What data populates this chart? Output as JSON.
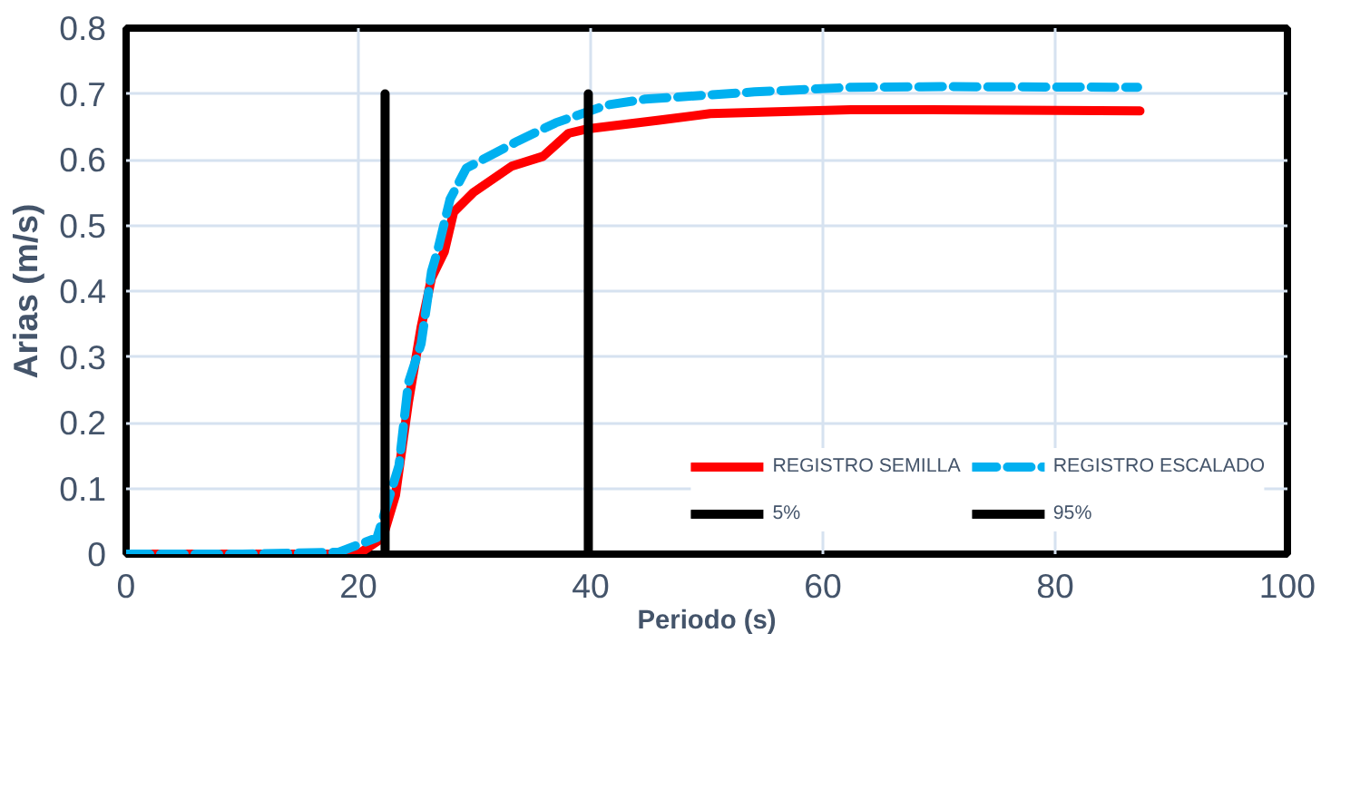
{
  "chart_data": {
    "type": "line",
    "xlabel": "Periodo (s)",
    "ylabel": "Arias (m/s)",
    "xlim": [
      0,
      100
    ],
    "ylim": [
      0,
      0.8
    ],
    "xticks": [
      0,
      20,
      40,
      60,
      80,
      100
    ],
    "yticks": [
      0,
      0.1,
      0.2,
      0.3,
      0.4,
      0.5,
      0.6,
      0.7,
      0.8
    ],
    "grid": true,
    "legend": "bottom right",
    "series": [
      {
        "name": "REGISTRO SEMILLA",
        "color": "#ff0000",
        "line_style": "solid",
        "x": [
          0,
          10,
          20,
          22.1,
          23.2,
          24.3,
          25.4,
          26.3,
          27.4,
          28.2,
          29.9,
          33.2,
          35.9,
          38.1,
          39.8,
          45.9,
          50.3,
          62.4,
          69.5,
          87.3
        ],
        "values": [
          0,
          0,
          0,
          0.025,
          0.09,
          0.23,
          0.345,
          0.42,
          0.46,
          0.52,
          0.55,
          0.59,
          0.605,
          0.64,
          0.647,
          0.66,
          0.67,
          0.676,
          0.676,
          0.674
        ]
      },
      {
        "name": "REGISTRO ESCALADO",
        "color": "#00b0f0",
        "line_style": "dashed",
        "x": [
          0,
          10,
          18.3,
          21.6,
          23.5,
          24.3,
          25.4,
          26.3,
          26.8,
          27.9,
          29.3,
          33.7,
          37.0,
          41.4,
          44.7,
          54.1,
          62.4,
          70.1,
          87.1
        ],
        "values": [
          0,
          0,
          0.003,
          0.025,
          0.135,
          0.26,
          0.32,
          0.43,
          0.46,
          0.54,
          0.587,
          0.628,
          0.656,
          0.683,
          0.692,
          0.703,
          0.71,
          0.711,
          0.71
        ]
      },
      {
        "name": "5%",
        "color": "#000000",
        "line_style": "solid",
        "x": [
          22.3,
          22.3
        ],
        "values": [
          0,
          0.7
        ]
      },
      {
        "name": "95%",
        "color": "#000000",
        "line_style": "solid",
        "x": [
          39.8,
          39.8
        ],
        "values": [
          0,
          0.7
        ]
      }
    ]
  }
}
